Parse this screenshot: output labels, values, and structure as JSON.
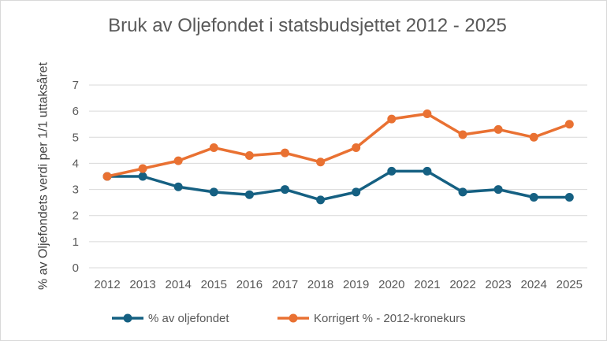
{
  "chart_data": {
    "type": "line",
    "title": "Bruk av Oljefondet i statsbudsjettet 2012 - 2025",
    "xlabel": "",
    "ylabel": "% av Oljefondets verdi per 1/1 uttaksåret",
    "categories": [
      "2012",
      "2013",
      "2014",
      "2015",
      "2016",
      "2017",
      "2018",
      "2019",
      "2020",
      "2021",
      "2022",
      "2023",
      "2024",
      "2025"
    ],
    "ylim": [
      0,
      7
    ],
    "yticks": [
      0,
      1,
      2,
      3,
      4,
      5,
      6,
      7
    ],
    "grid": true,
    "legend_position": "bottom",
    "series": [
      {
        "name": "% av oljefondet",
        "color": "#156082",
        "values": [
          3.5,
          3.5,
          3.1,
          2.9,
          2.8,
          3.0,
          2.6,
          2.9,
          3.7,
          3.7,
          2.9,
          3.0,
          2.7,
          2.7
        ]
      },
      {
        "name": "Korrigert % - 2012-kronekurs",
        "color": "#E97132",
        "values": [
          3.5,
          3.8,
          4.1,
          4.6,
          4.3,
          4.4,
          4.05,
          4.6,
          5.7,
          5.9,
          5.1,
          5.3,
          5.0,
          5.5
        ]
      }
    ]
  }
}
